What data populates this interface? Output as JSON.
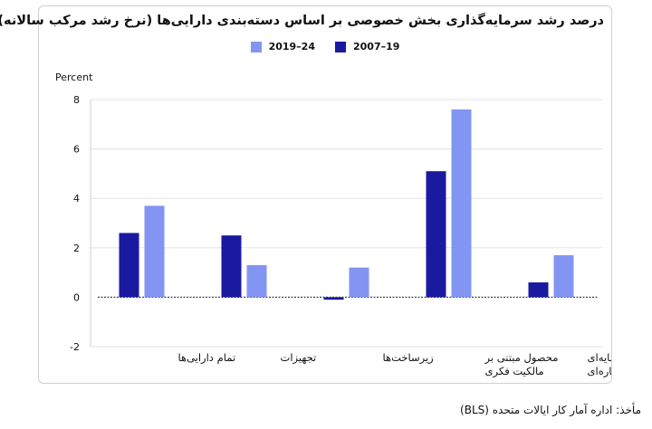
{
  "title": "درصد رشد سرمایه‌گذاری بخش خصوصی بر اساس دسته‌بندی دارایی‌ها (نرخ رشد مرکب سالانه)",
  "unit_label": "Percent",
  "source": "مأخذ: اداره آمار کار ایالات متحده (BLS)",
  "colors": {
    "series_1": "#1a1aa0",
    "series_2": "#8395f2",
    "grid": "#e3e3e3",
    "zero_line": "#444444"
  },
  "chart_data": {
    "type": "bar",
    "categories": [
      "تمام دارایی‌ها",
      "تجهیزات",
      "زیرساخت‌ها",
      "محصول مبتنی بر مالکیت فکری",
      "دارایی سرمایه‌ای مسکونی اجاره‌ای"
    ],
    "category_lines": [
      [
        "تمام دارایی‌ها"
      ],
      [
        "تجهیزات"
      ],
      [
        "زیرساخت‌ها"
      ],
      [
        "محصول مبتنی بر",
        "مالکیت فکری"
      ],
      [
        "دارایی سرمایه‌ای",
        "مسکونی اجاره‌ای"
      ]
    ],
    "series": [
      {
        "name": "2007–19",
        "values": [
          2.6,
          2.5,
          -0.1,
          5.1,
          0.6
        ]
      },
      {
        "name": "2019–24",
        "values": [
          3.7,
          1.3,
          1.2,
          7.6,
          1.7
        ]
      }
    ],
    "ylim": [
      -2,
      8
    ],
    "yticks": [
      -2,
      0,
      2,
      4,
      6,
      8
    ],
    "grid": true,
    "legend_position": "top-center"
  }
}
